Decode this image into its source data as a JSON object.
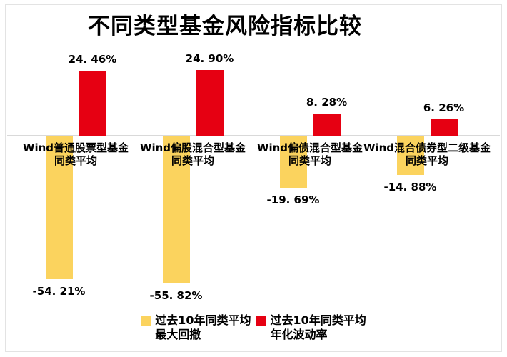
{
  "title": "不同类型基金风险指标比较",
  "chart_data": {
    "type": "bar",
    "title": "不同类型基金风险指标比较",
    "orientation": "vertical",
    "unit": "%",
    "baseline": 0,
    "gridlines": false,
    "y_axis_visible": false,
    "legend_position": "bottom",
    "categories": [
      {
        "line1": "Wind普通股票型基金",
        "line2": "同类平均"
      },
      {
        "line1": "Wind偏股混合型基金",
        "line2": "同类平均"
      },
      {
        "line1": "Wind偏债混合型基金",
        "line2": "同类平均"
      },
      {
        "line1": "Wind混合债券型二级基金",
        "line2": "同类平均"
      }
    ],
    "series": [
      {
        "name": "过去10年同类平均最大回撤",
        "color": "#FBD35E",
        "values": [
          -54.21,
          -55.82,
          -19.69,
          -14.88
        ],
        "labels": [
          "-54. 21%",
          "-55. 82%",
          "-19. 69%",
          "-14. 88%"
        ]
      },
      {
        "name": "过去10年同类平均年化波动率",
        "color": "#E60012",
        "values": [
          24.46,
          24.9,
          8.28,
          6.26
        ],
        "labels": [
          "24. 46%",
          "24. 90%",
          "8. 28%",
          "6. 26%"
        ]
      }
    ]
  },
  "legend": {
    "items": [
      {
        "color": "#FBD35E",
        "line1": "过去10年同类平均",
        "line2": "最大回撤"
      },
      {
        "color": "#E60012",
        "line1": "过去10年同类平均",
        "line2": "年化波动率"
      }
    ]
  },
  "colors": {
    "drawdown_yellow": "#FBD35E",
    "volatility_red": "#E60012",
    "axis_line": "#D9D9D9",
    "frame_border": "#E3E3E3",
    "text": "#000000"
  }
}
